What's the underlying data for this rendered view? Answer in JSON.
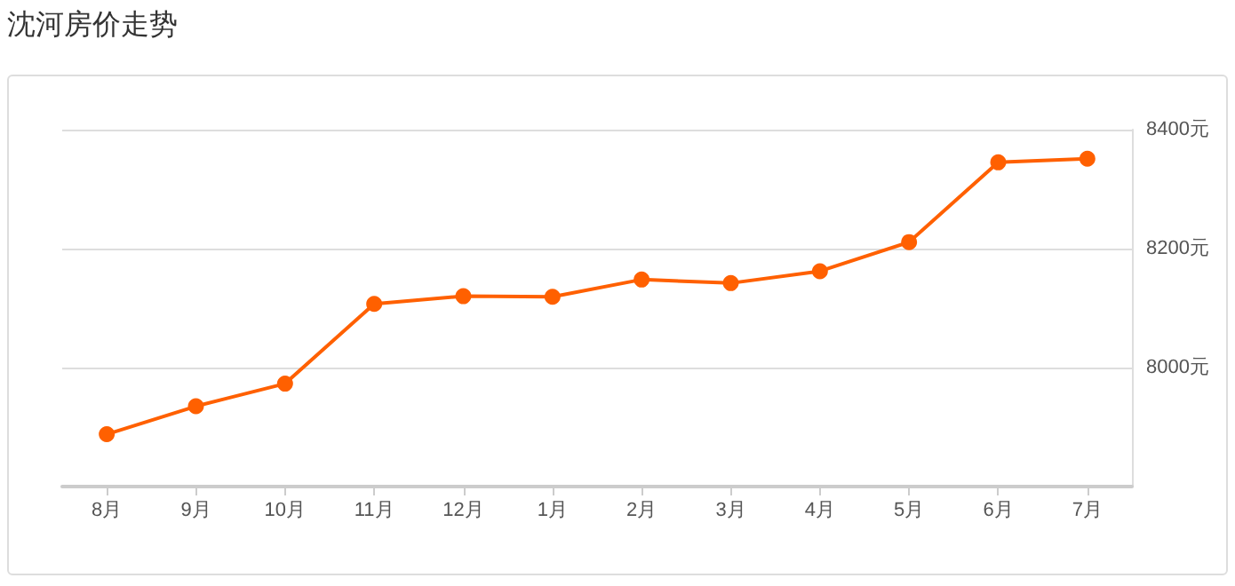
{
  "chart_data": {
    "type": "line",
    "title": "沈河房价走势",
    "categories": [
      "8月",
      "9月",
      "10月",
      "11月",
      "12月",
      "1月",
      "2月",
      "3月",
      "4月",
      "5月",
      "6月",
      "7月"
    ],
    "series": [
      {
        "color": "#ff6000",
        "values": [
          7888,
          7935,
          7973,
          8107,
          8120,
          8119,
          8148,
          8142,
          8162,
          8211,
          8345,
          8351
        ]
      }
    ],
    "ylim": [
      7800,
      8400
    ],
    "yticks": [
      {
        "value": 8000,
        "label": "8000元"
      },
      {
        "value": 8200,
        "label": "8200元"
      },
      {
        "value": 8400,
        "label": "8400元"
      }
    ],
    "grid": "y",
    "marker": "circle",
    "line_style": "solid"
  }
}
